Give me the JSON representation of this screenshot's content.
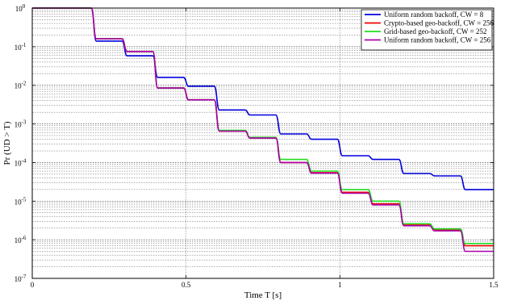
{
  "chart_data": {
    "type": "line",
    "title": "",
    "xlabel": "Time T [s]",
    "ylabel": "Pr (UD > T)",
    "xlim": [
      0,
      1.5
    ],
    "ylim_exp": [
      -7,
      0
    ],
    "yscale": "log",
    "grid": true,
    "legend_position": "top-right",
    "x_ticks": [
      {
        "value": 0,
        "label": "0"
      },
      {
        "value": 0.5,
        "label": "0.5"
      },
      {
        "value": 1,
        "label": "1"
      },
      {
        "value": 1.5,
        "label": "1.5"
      }
    ],
    "y_ticks": [
      {
        "exp": 0,
        "base": "10",
        "sup": "0"
      },
      {
        "exp": -1,
        "base": "10",
        "sup": "-1"
      },
      {
        "exp": -2,
        "base": "10",
        "sup": "-2"
      },
      {
        "exp": -3,
        "base": "10",
        "sup": "-3"
      },
      {
        "exp": -4,
        "base": "10",
        "sup": "-4"
      },
      {
        "exp": -5,
        "base": "10",
        "sup": "-5"
      },
      {
        "exp": -6,
        "base": "10",
        "sup": "-6"
      },
      {
        "exp": -7,
        "base": "10",
        "sup": "-7"
      }
    ],
    "series": [
      {
        "name": "Uniform random backoff, CW = 8",
        "color": "#0000dd",
        "steps": [
          [
            0,
            1
          ],
          [
            0.2,
            0.14
          ],
          [
            0.3,
            0.058
          ],
          [
            0.4,
            0.016
          ],
          [
            0.5,
            0.0095
          ],
          [
            0.6,
            0.0023
          ],
          [
            0.7,
            0.0017
          ],
          [
            0.8,
            0.00055
          ],
          [
            0.9,
            0.0004
          ],
          [
            1.0,
            0.00015
          ],
          [
            1.1,
            0.00012
          ],
          [
            1.2,
            5.2e-05
          ],
          [
            1.3,
            4.5e-05
          ],
          [
            1.4,
            2e-05
          ],
          [
            1.5,
            2e-05
          ]
        ]
      },
      {
        "name": "Crypto-based geo-backoff, CW = 256",
        "color": "#ee0000",
        "steps": [
          [
            0,
            1
          ],
          [
            0.2,
            0.16
          ],
          [
            0.3,
            0.075
          ],
          [
            0.4,
            0.0085
          ],
          [
            0.5,
            0.0042
          ],
          [
            0.6,
            0.00065
          ],
          [
            0.7,
            0.00043
          ],
          [
            0.8,
            0.0001
          ],
          [
            0.9,
            5.5e-05
          ],
          [
            1.0,
            1.7e-05
          ],
          [
            1.1,
            8.5e-06
          ],
          [
            1.2,
            2.4e-06
          ],
          [
            1.3,
            1.8e-06
          ],
          [
            1.4,
            7e-07
          ],
          [
            1.5,
            7e-07
          ]
        ]
      },
      {
        "name": "Grid-based geo-backoff, CW = 252",
        "color": "#22dd22",
        "steps": [
          [
            0,
            1
          ],
          [
            0.2,
            0.16
          ],
          [
            0.3,
            0.075
          ],
          [
            0.4,
            0.0085
          ],
          [
            0.5,
            0.0042
          ],
          [
            0.6,
            0.00068
          ],
          [
            0.7,
            0.00045
          ],
          [
            0.8,
            0.00012
          ],
          [
            0.9,
            6e-05
          ],
          [
            1.0,
            2e-05
          ],
          [
            1.1,
            1e-05
          ],
          [
            1.2,
            2.6e-06
          ],
          [
            1.3,
            1.9e-06
          ],
          [
            1.4,
            8e-07
          ],
          [
            1.5,
            8e-07
          ]
        ]
      },
      {
        "name": "Uniform random backoff, CW = 256",
        "color": "#aa00aa",
        "steps": [
          [
            0,
            1
          ],
          [
            0.2,
            0.16
          ],
          [
            0.3,
            0.075
          ],
          [
            0.4,
            0.0085
          ],
          [
            0.5,
            0.0042
          ],
          [
            0.6,
            0.00065
          ],
          [
            0.7,
            0.00043
          ],
          [
            0.8,
            0.0001
          ],
          [
            0.9,
            5.3e-05
          ],
          [
            1.0,
            1.6e-05
          ],
          [
            1.1,
            8e-06
          ],
          [
            1.2,
            2.3e-06
          ],
          [
            1.3,
            1.7e-06
          ],
          [
            1.4,
            5e-07
          ],
          [
            1.5,
            5e-07
          ]
        ]
      }
    ]
  }
}
